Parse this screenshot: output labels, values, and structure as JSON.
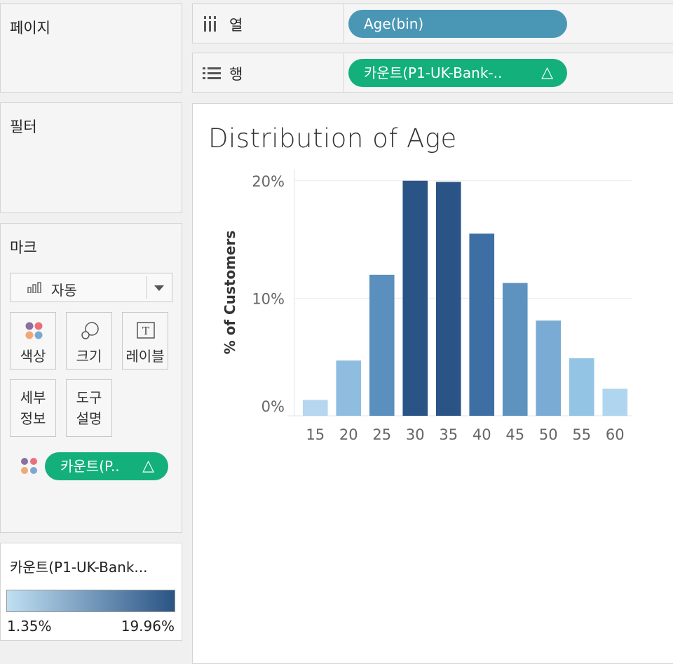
{
  "panels": {
    "pages": {
      "title": "페이지"
    },
    "filters": {
      "title": "필터"
    },
    "marks": {
      "title": "마크",
      "mark_type": "자동",
      "buttons": [
        {
          "label": "색상",
          "icon": "color-dots-icon"
        },
        {
          "label": "크기",
          "icon": "size-circles-icon"
        },
        {
          "label": "레이블",
          "icon": "text-label-icon"
        }
      ],
      "button_detail": {
        "line1": "세부",
        "line2": "정보"
      },
      "button_tooltip": {
        "line1": "도구",
        "line2": "설명"
      },
      "color_pill": {
        "label": "카운트(P..",
        "delta": "△"
      },
      "label_icon_text": "T"
    },
    "legend": {
      "title": "카운트(P1-UK-Bank...",
      "min": "1.35%",
      "max": "19.96%",
      "color_low": "#c0dff2",
      "color_high": "#2a5485"
    }
  },
  "shelves": {
    "columns": {
      "label": "열",
      "pill": "Age(bin)"
    },
    "rows": {
      "label": "행",
      "pill": "카운트(P1-UK-Bank-..",
      "delta": "△"
    }
  },
  "chart_data": {
    "type": "bar",
    "title": "Distribution of Age",
    "ylabel": "% of Customers",
    "categories": [
      "15",
      "20",
      "25",
      "30",
      "35",
      "40",
      "45",
      "50",
      "55",
      "60"
    ],
    "values": [
      1.35,
      4.7,
      12.0,
      20.0,
      19.9,
      15.5,
      11.3,
      8.1,
      4.9,
      2.3
    ],
    "ylim": [
      0,
      21
    ],
    "yticks": [
      {
        "value": 0,
        "label": "0%"
      },
      {
        "value": 10,
        "label": "10%"
      },
      {
        "value": 20,
        "label": "20%"
      }
    ],
    "colors": [
      "#b5d6ee",
      "#8fbde0",
      "#5a8fbe",
      "#2a5485",
      "#2a5485",
      "#3d6ea4",
      "#5e93c0",
      "#7aabd4",
      "#94c4e4",
      "#b0d5ef"
    ],
    "grid": true
  }
}
